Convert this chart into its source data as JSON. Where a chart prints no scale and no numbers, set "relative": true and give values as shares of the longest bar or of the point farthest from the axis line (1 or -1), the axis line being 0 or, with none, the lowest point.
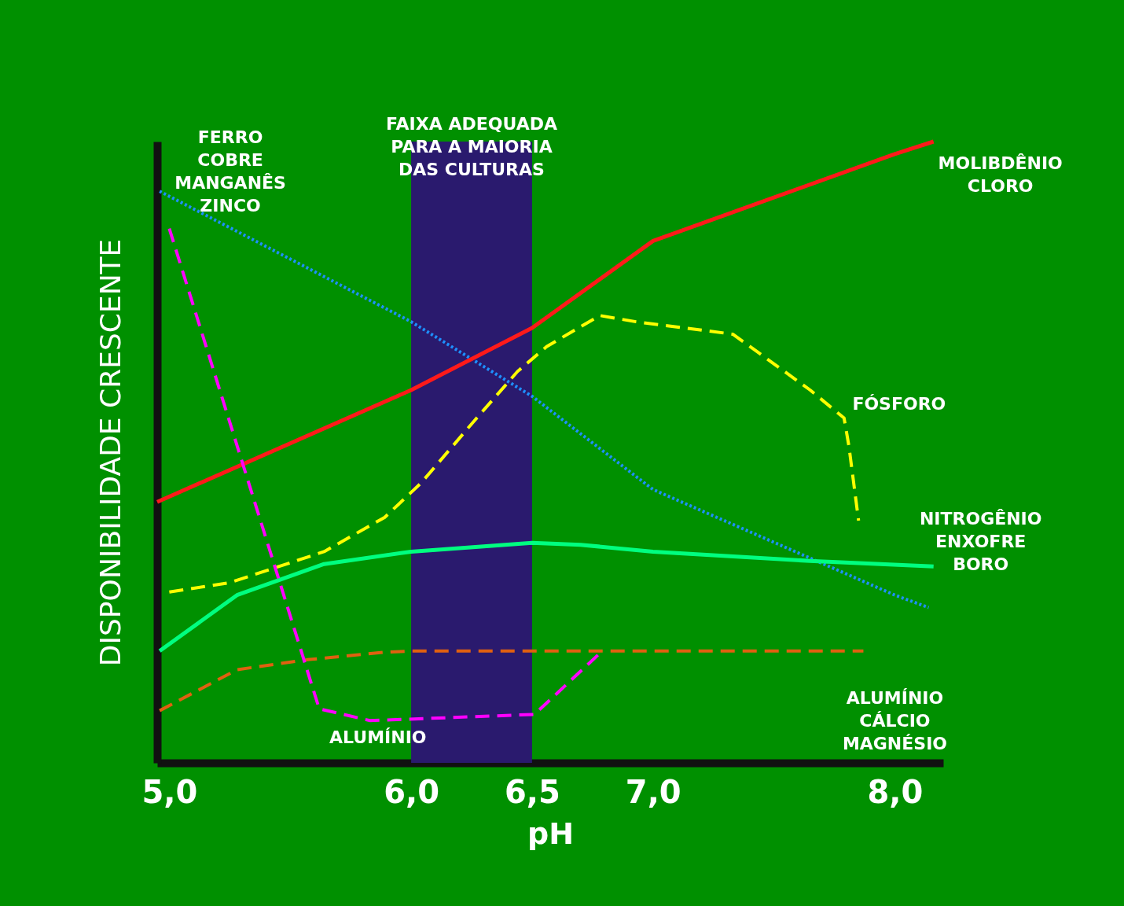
{
  "chart_data": {
    "type": "line",
    "relative": true,
    "xlabel": "pH",
    "ylabel": "DISPONIBILIDADE CRESCENTE",
    "xlim": [
      4.95,
      8.2
    ],
    "xticks": [
      {
        "value": 5,
        "label": "5,0"
      },
      {
        "value": 6,
        "label": "6,0"
      },
      {
        "value": 6.5,
        "label": "6,5"
      },
      {
        "value": 7,
        "label": "7,0"
      },
      {
        "value": 8,
        "label": "8,0"
      }
    ],
    "grid": false,
    "bands": [
      {
        "axis": "x",
        "from": 6.0,
        "to": 6.5,
        "label": "FAIXA ADEQUADA\nPARA A MAIORIA\nDAS CULTURAS",
        "color": "#2a1a6e"
      }
    ],
    "series": [
      {
        "name": "FERRO\nCOBRE\nMANGANÊS\nZINCO",
        "color": "#1e90ff",
        "line_style": "dotted",
        "x": [
          4.96,
          6.0,
          6.5,
          7.0,
          8.0,
          8.14
        ],
        "values": [
          0.92,
          0.71,
          0.59,
          0.44,
          0.27,
          0.25
        ]
      },
      {
        "name": "MOLIBDÊNIO\nCLORO",
        "color": "#ff1a1a",
        "line_style": "solid",
        "x": [
          4.95,
          6.0,
          6.5,
          7.0,
          8.0,
          8.16
        ],
        "values": [
          0.42,
          0.6,
          0.7,
          0.84,
          0.98,
          1.0
        ]
      },
      {
        "name": "FÓSFORO",
        "color": "#ffff00",
        "line_style": "dashed",
        "x": [
          5.0,
          5.25,
          5.64,
          5.89,
          6.04,
          6.26,
          6.44,
          6.56,
          6.78,
          6.93,
          7.33,
          7.65,
          7.79,
          7.81,
          7.85
        ],
        "values": [
          0.275,
          0.29,
          0.34,
          0.395,
          0.45,
          0.55,
          0.63,
          0.67,
          0.72,
          0.71,
          0.69,
          0.6,
          0.555,
          0.51,
          0.39
        ]
      },
      {
        "name": "NITROGÊNIO\nENXOFRE\nBORO",
        "color": "#00ff80",
        "line_style": "solid",
        "x": [
          4.96,
          5.28,
          5.64,
          6.0,
          6.5,
          6.7,
          7.0,
          7.65,
          8.16
        ],
        "values": [
          0.18,
          0.27,
          0.32,
          0.34,
          0.354,
          0.351,
          0.34,
          0.325,
          0.316
        ]
      },
      {
        "name": "ALUMÍNIO\nCÁLCIO\nMAGNÉSIO",
        "color": "#e06010",
        "line_style": "dashed",
        "x": [
          4.96,
          5.28,
          5.57,
          5.89,
          6.0,
          7.87
        ],
        "values": [
          0.084,
          0.15,
          0.166,
          0.178,
          0.18,
          0.18
        ]
      },
      {
        "name": "ALUMÍNIO",
        "color": "#ff00ff",
        "line_style": "dashed",
        "x": [
          5.0,
          5.62,
          5.83,
          6.51,
          6.79
        ],
        "values": [
          0.86,
          0.087,
          0.068,
          0.078,
          0.18
        ]
      }
    ]
  }
}
